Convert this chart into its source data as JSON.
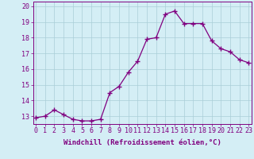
{
  "x": [
    0,
    1,
    2,
    3,
    4,
    5,
    6,
    7,
    8,
    9,
    10,
    11,
    12,
    13,
    14,
    15,
    16,
    17,
    18,
    19,
    20,
    21,
    22,
    23
  ],
  "y": [
    12.9,
    13.0,
    13.4,
    13.1,
    12.8,
    12.7,
    12.7,
    12.8,
    14.5,
    14.9,
    15.8,
    16.5,
    17.9,
    18.0,
    19.5,
    19.7,
    18.9,
    18.9,
    18.9,
    17.8,
    17.3,
    17.1,
    16.6,
    16.4
  ],
  "line_color": "#800080",
  "marker": "+",
  "marker_size": 4,
  "marker_lw": 1.0,
  "line_width": 0.9,
  "bg_color": "#d4eef5",
  "grid_color": "#aacdd8",
  "xlabel": "Windchill (Refroidissement éolien,°C)",
  "ylim": [
    12.5,
    20.3
  ],
  "yticks": [
    13,
    14,
    15,
    16,
    17,
    18,
    19,
    20
  ],
  "xticks": [
    0,
    1,
    2,
    3,
    4,
    5,
    6,
    7,
    8,
    9,
    10,
    11,
    12,
    13,
    14,
    15,
    16,
    17,
    18,
    19,
    20,
    21,
    22,
    23
  ],
  "xlim": [
    -0.3,
    23.3
  ],
  "axis_color": "#800080",
  "tick_color": "#800080",
  "label_fontsize": 6.5,
  "tick_fontsize": 6.0
}
